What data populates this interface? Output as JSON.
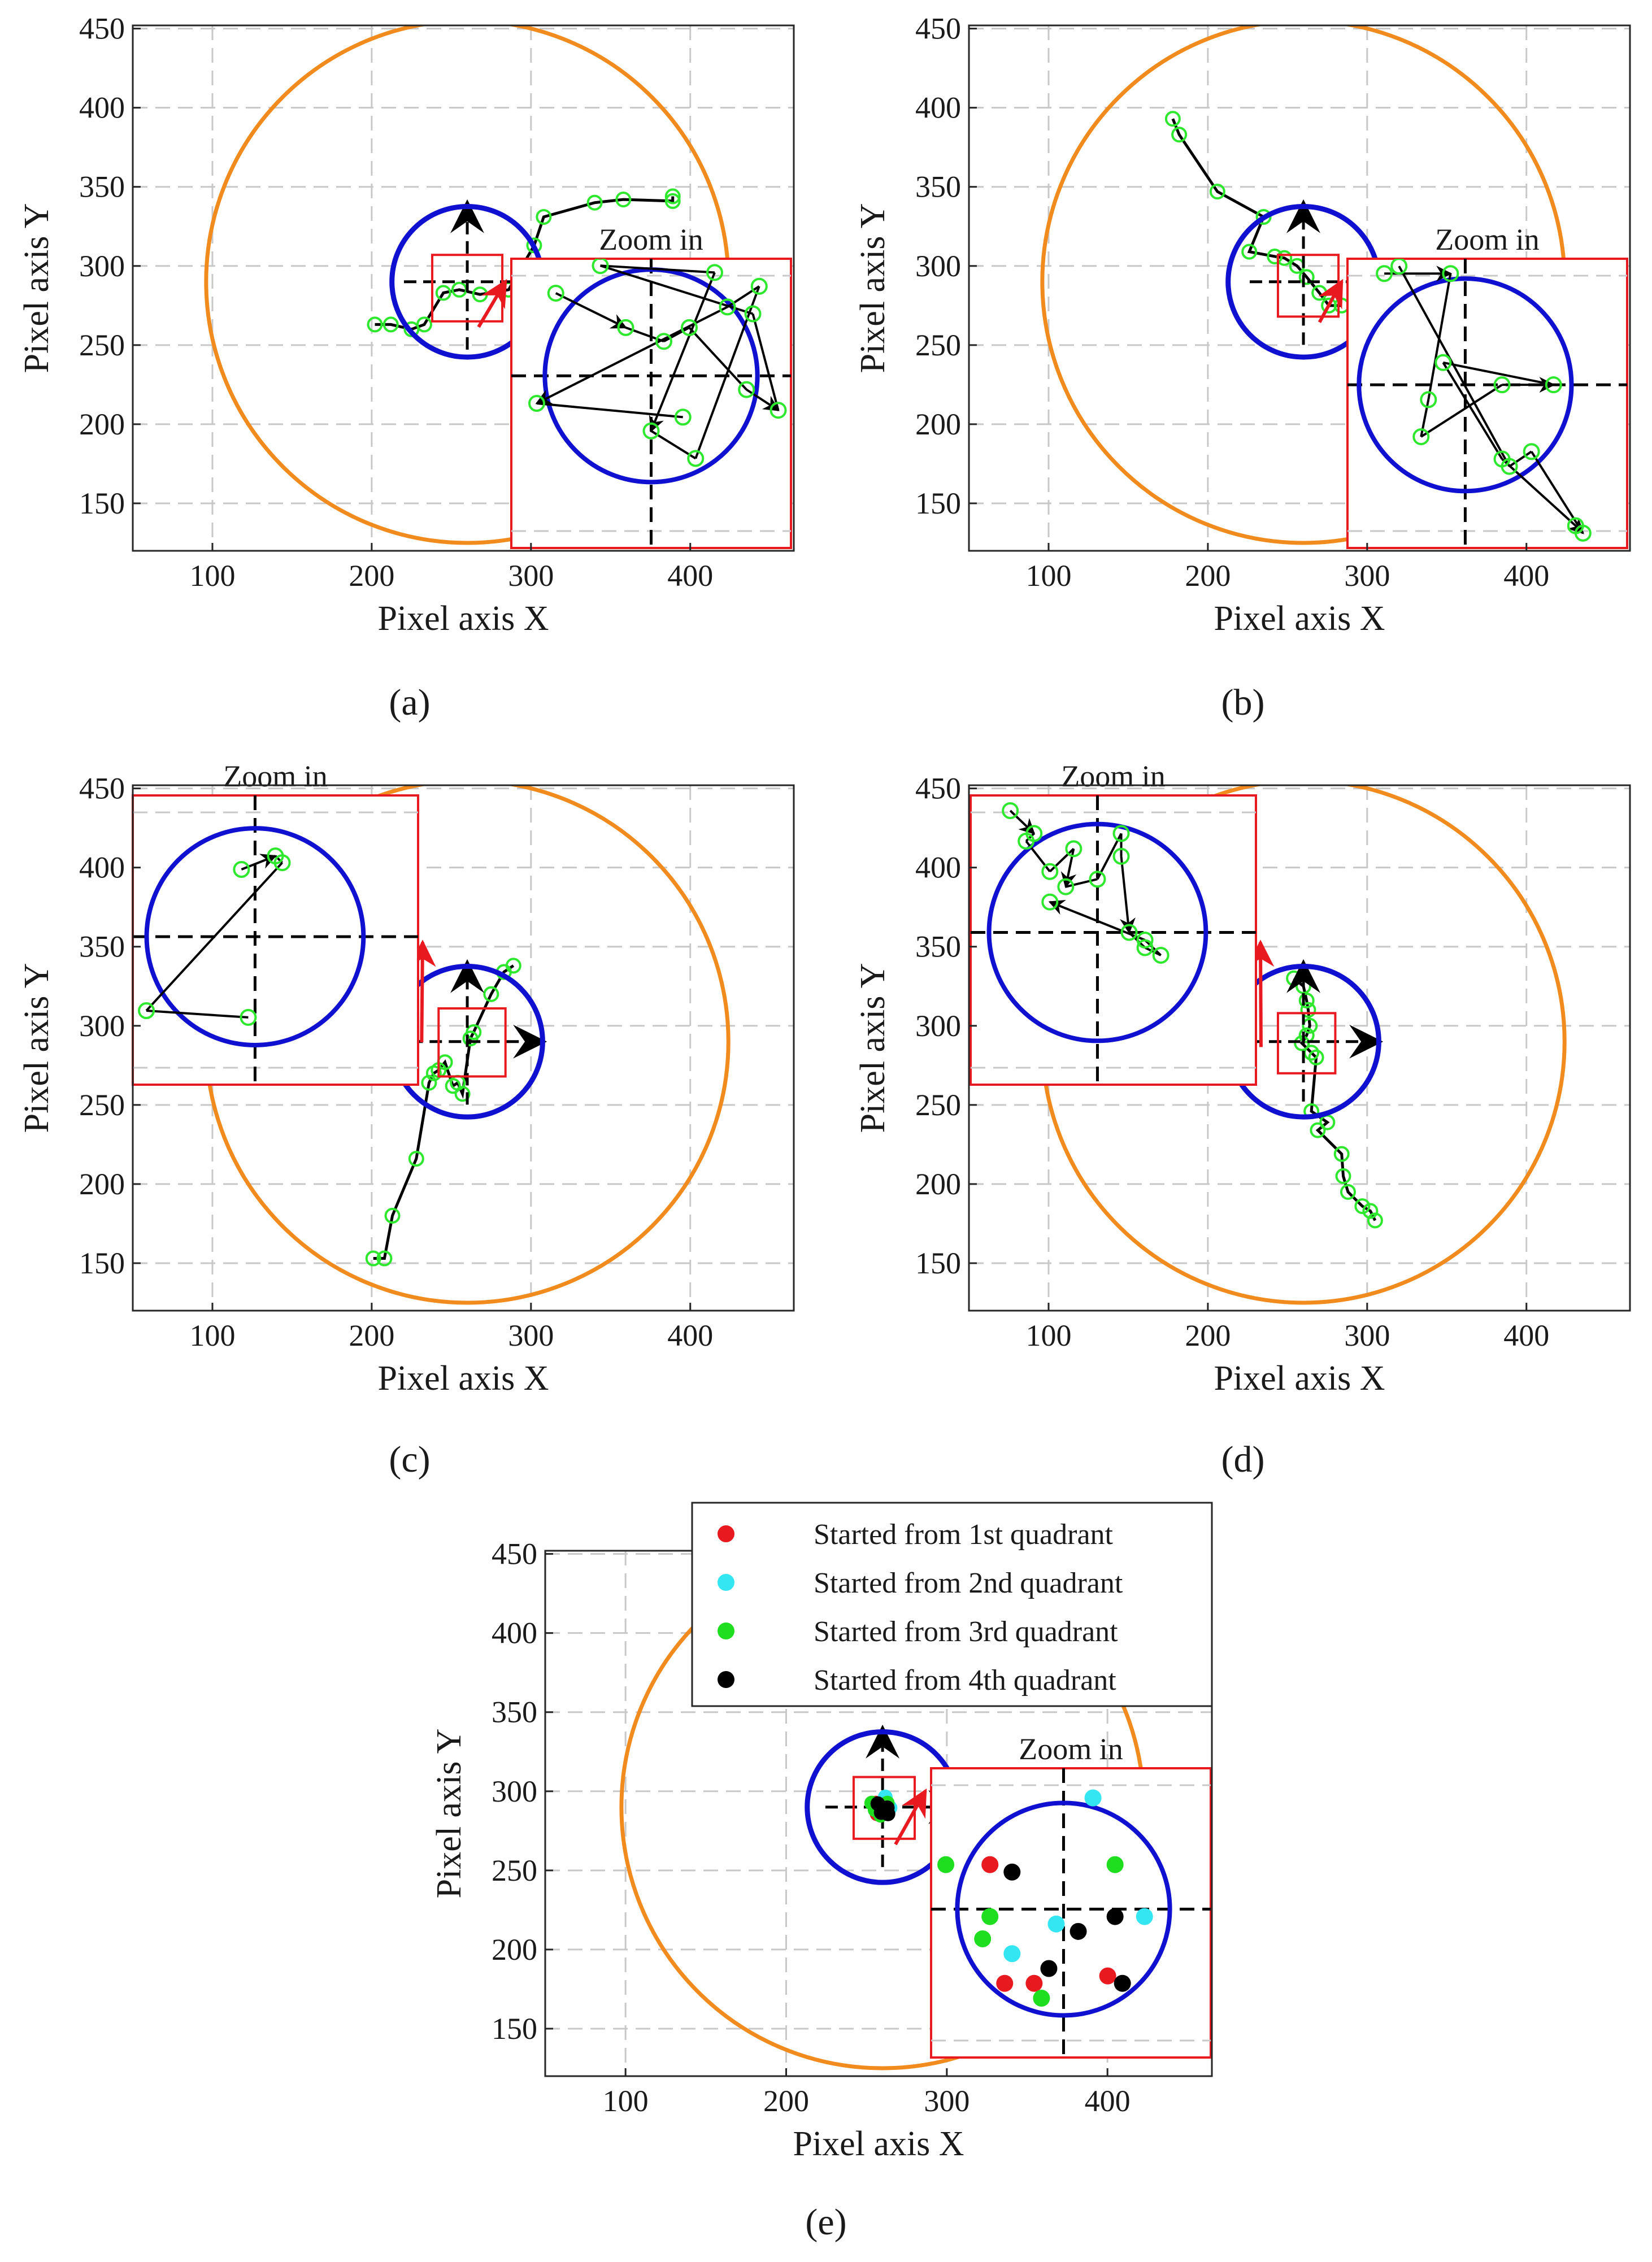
{
  "figure": {
    "panel_captions": [
      "(a)",
      "(b)",
      "(c)",
      "(d)",
      "(e)"
    ],
    "colors": {
      "large_circle": "#f28b1e",
      "small_circle": "#1010d0",
      "marker": "#2ee82e",
      "path": "#000000",
      "zoom_box": "#e8191f",
      "grid": "#c8c8c8"
    }
  },
  "chart_data": [
    {
      "type": "scatter",
      "panel": "a",
      "xlabel": "Pixel axis X",
      "ylabel": "Pixel axis Y",
      "xlim": [
        50,
        465
      ],
      "ylim": [
        120,
        452
      ],
      "xticks": [
        100,
        200,
        300,
        400
      ],
      "yticks": [
        150,
        200,
        250,
        300,
        350,
        400,
        450
      ],
      "zoom_label": "Zoom in",
      "target": [
        260,
        290
      ],
      "large_circle_radius": 165,
      "small_circle_radius": 17,
      "zoom_window": {
        "x": [
          238,
          282
        ],
        "y": [
          265,
          307
        ]
      },
      "trajectory": [
        [
          389,
          344
        ],
        [
          389,
          341
        ],
        [
          358,
          342
        ],
        [
          340,
          340
        ],
        [
          308,
          331
        ],
        [
          302,
          313
        ],
        [
          286,
          285
        ],
        [
          268,
          282
        ],
        [
          255,
          285
        ],
        [
          245,
          283
        ],
        [
          233,
          263
        ],
        [
          225,
          260
        ],
        [
          212,
          263
        ],
        [
          202,
          263
        ]
      ],
      "zoom_points": [
        [
          245,
          302
        ],
        [
          256,
          297
        ],
        [
          262,
          295
        ],
        [
          266,
          297
        ],
        [
          275,
          288
        ],
        [
          280,
          285
        ],
        [
          276,
          299
        ],
        [
          252,
          306
        ],
        [
          270,
          305
        ],
        [
          260,
          282
        ],
        [
          267,
          278
        ],
        [
          277,
          303
        ],
        [
          272,
          300
        ],
        [
          242,
          286
        ],
        [
          265,
          284
        ]
      ]
    },
    {
      "type": "scatter",
      "panel": "b",
      "xlabel": "Pixel axis X",
      "ylabel": "Pixel axis Y",
      "xlim": [
        50,
        465
      ],
      "ylim": [
        120,
        452
      ],
      "xticks": [
        100,
        200,
        300,
        400
      ],
      "yticks": [
        150,
        200,
        250,
        300,
        350,
        400,
        450
      ],
      "zoom_label": "Zoom in",
      "target": [
        260,
        290
      ],
      "large_circle_radius": 165,
      "small_circle_radius": 17,
      "zoom_window": {
        "x": [
          244,
          282
        ],
        "y": [
          268,
          307
        ]
      },
      "trajectory": [
        [
          178,
          393
        ],
        [
          182,
          383
        ],
        [
          206,
          347
        ],
        [
          235,
          331
        ],
        [
          226,
          309
        ],
        [
          242,
          306
        ],
        [
          248,
          305
        ],
        [
          256,
          300
        ],
        [
          262,
          293
        ],
        [
          270,
          283
        ],
        [
          276,
          275
        ],
        [
          284,
          275
        ]
      ],
      "zoom_points": [
        [
          249,
          305
        ],
        [
          258,
          305
        ],
        [
          255,
          288
        ],
        [
          254,
          283
        ],
        [
          265,
          290
        ],
        [
          272,
          290
        ],
        [
          257,
          293
        ],
        [
          265,
          280
        ],
        [
          275,
          271
        ],
        [
          276,
          270
        ],
        [
          269,
          281
        ],
        [
          266,
          279
        ],
        [
          251,
          306
        ]
      ]
    },
    {
      "type": "scatter",
      "panel": "c",
      "xlabel": "Pixel axis X",
      "ylabel": "Pixel axis Y",
      "xlim": [
        50,
        465
      ],
      "ylim": [
        120,
        452
      ],
      "xticks": [
        100,
        200,
        300,
        400
      ],
      "yticks": [
        150,
        200,
        250,
        300,
        350,
        400,
        450
      ],
      "zoom_label": "Zoom in",
      "target": [
        260,
        290
      ],
      "large_circle_radius": 165,
      "small_circle_radius": 17,
      "zoom_window": {
        "x": [
          242,
          284
        ],
        "y": [
          268,
          311
        ]
      },
      "trajectory": [
        [
          289,
          338
        ],
        [
          283,
          334
        ],
        [
          275,
          320
        ],
        [
          264,
          296
        ],
        [
          262,
          292
        ],
        [
          257,
          257
        ],
        [
          254,
          264
        ],
        [
          251,
          262
        ],
        [
          246,
          277
        ],
        [
          242,
          272
        ],
        [
          239,
          270
        ],
        [
          236,
          264
        ],
        [
          228,
          216
        ],
        [
          213,
          180
        ],
        [
          208,
          153
        ],
        [
          201,
          153
        ]
      ],
      "zoom_points": [
        [
          258,
          300
        ],
        [
          263,
          302
        ],
        [
          264,
          301
        ],
        [
          244,
          279
        ],
        [
          259,
          278
        ]
      ]
    },
    {
      "type": "scatter",
      "panel": "d",
      "xlabel": "Pixel axis X",
      "ylabel": "Pixel axis Y",
      "xlim": [
        50,
        465
      ],
      "ylim": [
        120,
        452
      ],
      "xticks": [
        100,
        200,
        300,
        400
      ],
      "yticks": [
        150,
        200,
        250,
        300,
        350,
        400,
        450
      ],
      "zoom_label": "Zoom in",
      "target": [
        260,
        290
      ],
      "large_circle_radius": 165,
      "small_circle_radius": 17,
      "zoom_window": {
        "x": [
          244,
          280
        ],
        "y": [
          270,
          308
        ]
      },
      "trajectory": [
        [
          254,
          330
        ],
        [
          260,
          325
        ],
        [
          262,
          316
        ],
        [
          263,
          310
        ],
        [
          264,
          300
        ],
        [
          262,
          294
        ],
        [
          259,
          289
        ],
        [
          265,
          283
        ],
        [
          268,
          280
        ],
        [
          265,
          246
        ],
        [
          275,
          239
        ],
        [
          269,
          234
        ],
        [
          284,
          219
        ],
        [
          285,
          205
        ],
        [
          288,
          195
        ],
        [
          297,
          186
        ],
        [
          302,
          183
        ],
        [
          305,
          177
        ]
      ],
      "zoom_points": [
        [
          249,
          306
        ],
        [
          252,
          303
        ],
        [
          251,
          302
        ],
        [
          254,
          298
        ],
        [
          257,
          301
        ],
        [
          256,
          296
        ],
        [
          260,
          297
        ],
        [
          263,
          303
        ],
        [
          263,
          300
        ],
        [
          264,
          290
        ],
        [
          266,
          288
        ],
        [
          268,
          287
        ],
        [
          266,
          289
        ],
        [
          254,
          294
        ]
      ]
    },
    {
      "type": "scatter",
      "panel": "e",
      "xlabel": "Pixel axis X",
      "ylabel": "Pixel axis Y",
      "xlim": [
        50,
        465
      ],
      "ylim": [
        120,
        452
      ],
      "xticks": [
        100,
        200,
        300,
        400
      ],
      "yticks": [
        150,
        200,
        250,
        300,
        350,
        400,
        450
      ],
      "zoom_label": "Zoom in",
      "target": [
        260,
        290
      ],
      "large_circle_radius": 165,
      "small_circle_radius": 17,
      "zoom_window": {
        "x": [
          242,
          280
        ],
        "y": [
          270,
          309
        ]
      },
      "legend": {
        "position": "top-right",
        "entries": [
          {
            "label": "Started from 1st quadrant",
            "color": "#e8191f"
          },
          {
            "label": "Started from 2nd quadrant",
            "color": "#33e6f2"
          },
          {
            "label": "Started from 3rd quadrant",
            "color": "#1fdd1f"
          },
          {
            "label": "Started from 4th quadrant",
            "color": "#000000"
          }
        ]
      },
      "zoom_points": [
        {
          "q": 1,
          "p": [
            250,
            296
          ]
        },
        {
          "q": 1,
          "p": [
            252,
            280
          ]
        },
        {
          "q": 1,
          "p": [
            256,
            280
          ]
        },
        {
          "q": 1,
          "p": [
            266,
            281
          ]
        },
        {
          "q": 2,
          "p": [
            264,
            305
          ]
        },
        {
          "q": 2,
          "p": [
            259,
            288
          ]
        },
        {
          "q": 2,
          "p": [
            253,
            284
          ]
        },
        {
          "q": 2,
          "p": [
            271,
            289
          ]
        },
        {
          "q": 3,
          "p": [
            244,
            296
          ]
        },
        {
          "q": 3,
          "p": [
            250,
            289
          ]
        },
        {
          "q": 3,
          "p": [
            249,
            286
          ]
        },
        {
          "q": 3,
          "p": [
            267,
            296
          ]
        },
        {
          "q": 3,
          "p": [
            257,
            278
          ]
        },
        {
          "q": 4,
          "p": [
            253,
            295
          ]
        },
        {
          "q": 4,
          "p": [
            267,
            289
          ]
        },
        {
          "q": 4,
          "p": [
            262,
            287
          ]
        },
        {
          "q": 4,
          "p": [
            258,
            282
          ]
        },
        {
          "q": 4,
          "p": [
            268,
            280
          ]
        }
      ]
    }
  ]
}
